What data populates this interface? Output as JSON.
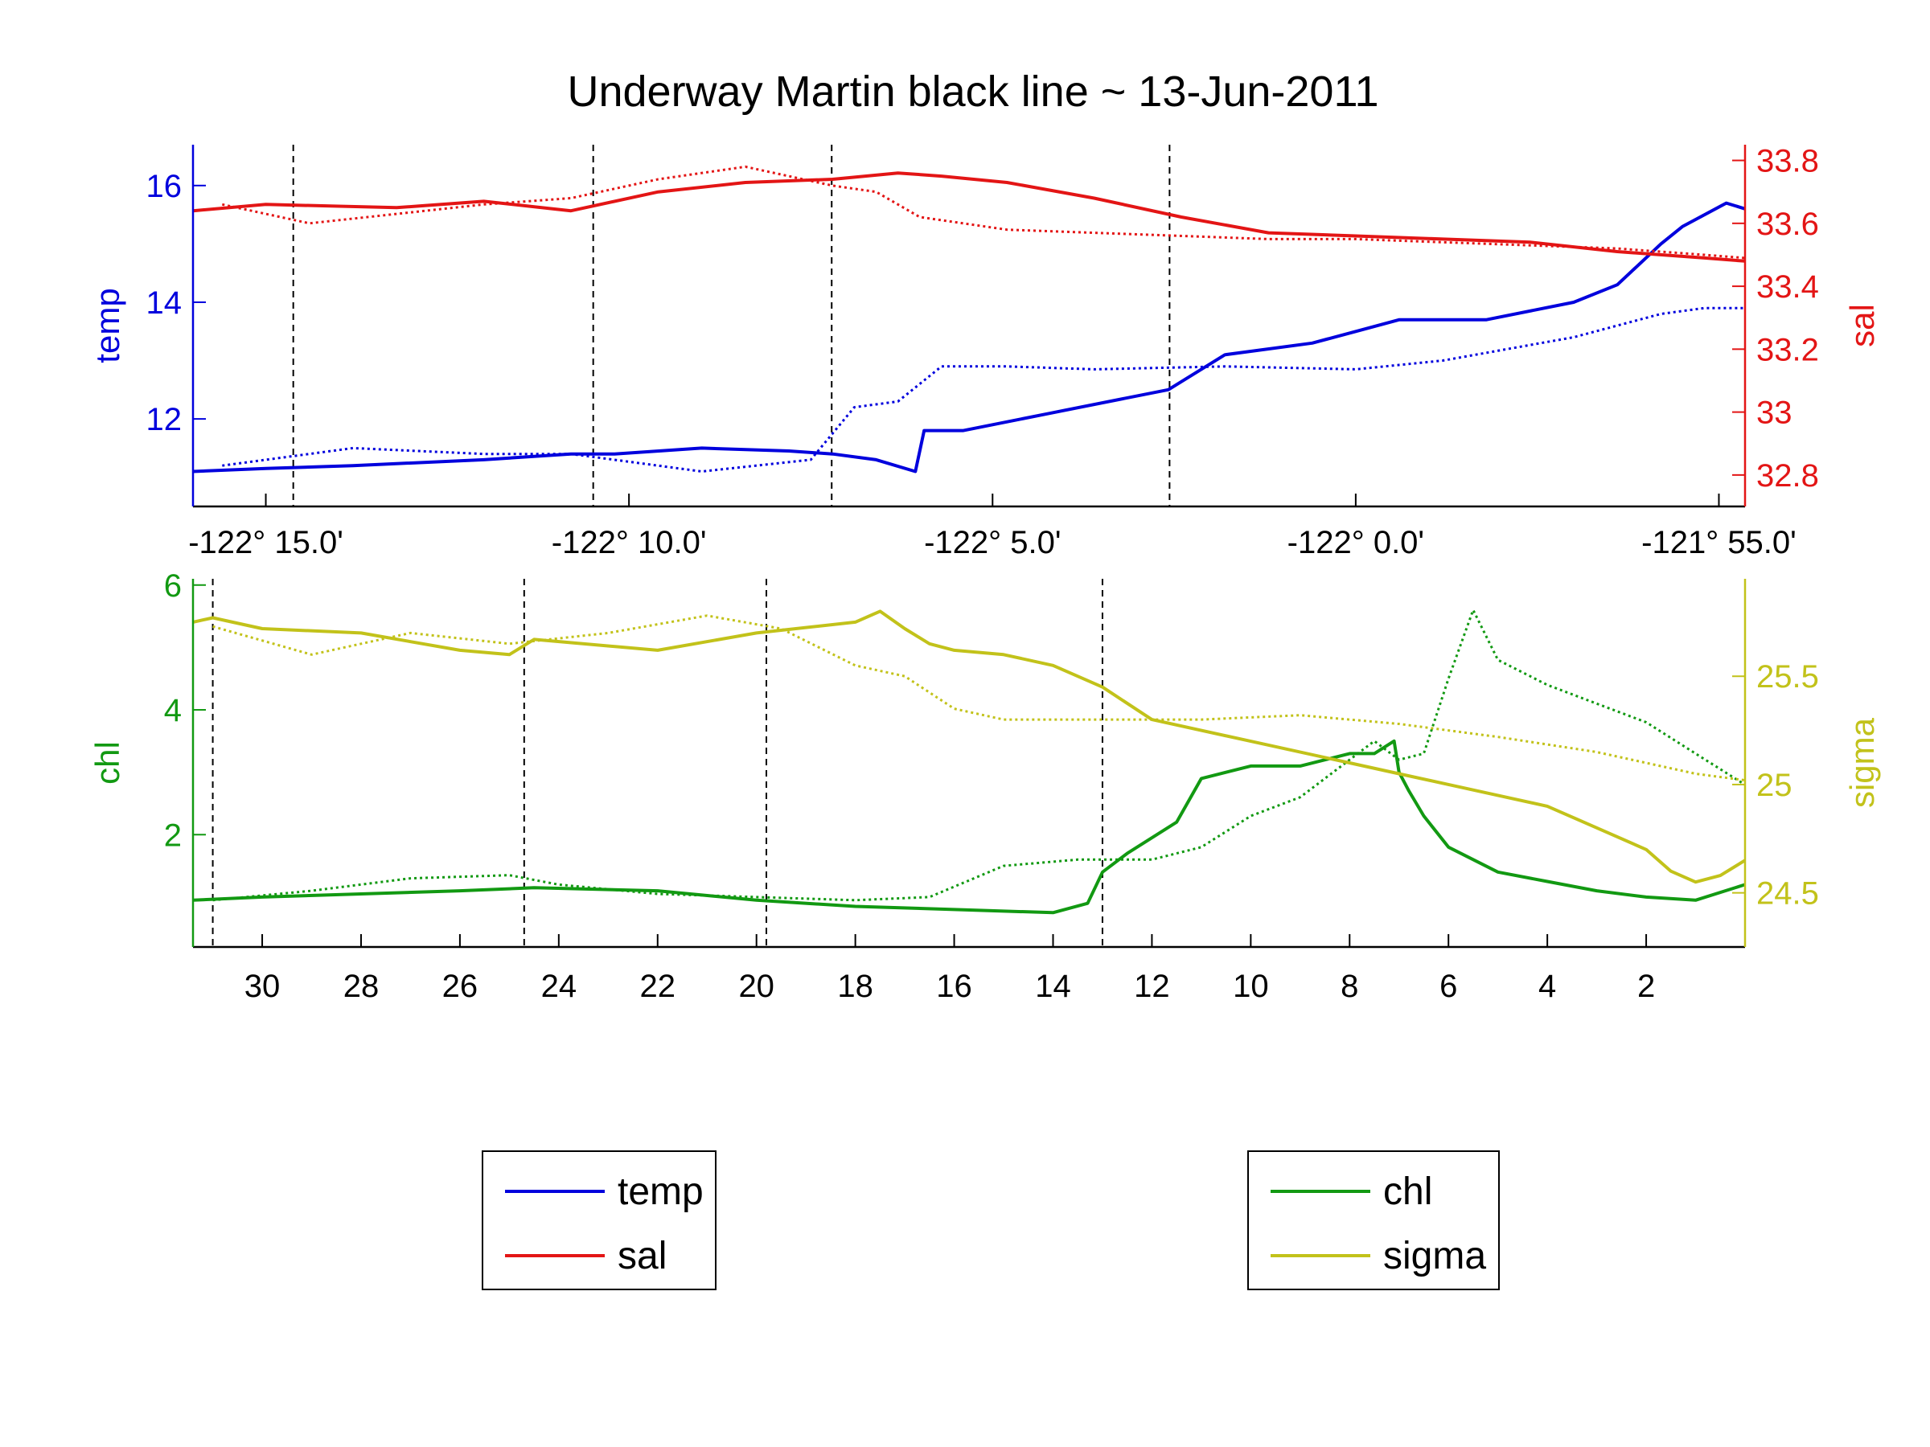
{
  "title": "Underway Martin black line ~ 13-Jun-2011",
  "colors": {
    "temp": "#0000dd",
    "sal": "#e31515",
    "chl": "#129912",
    "sigma": "#c2c21a",
    "axis": "#000000"
  },
  "legend_top": {
    "items": [
      {
        "label": "temp",
        "color": "#0000dd"
      },
      {
        "label": "sal",
        "color": "#e31515"
      }
    ]
  },
  "legend_bottom": {
    "items": [
      {
        "label": "chl",
        "color": "#129912"
      },
      {
        "label": "sigma",
        "color": "#c2c21a"
      }
    ]
  },
  "chart_data": [
    {
      "type": "line",
      "panel": "top",
      "xaxis": {
        "ticks": [
          -122.25,
          -122.1667,
          -122.0833,
          -122.0,
          -121.9167
        ],
        "tick_labels": [
          "-122° 15.0'",
          "-122° 10.0'",
          "-122° 5.0'",
          "-122° 0.0'",
          "-121° 55.0'"
        ],
        "range": [
          -122.2667,
          -121.9107
        ]
      },
      "vlines": [
        -122.2437,
        -122.1749,
        -122.1202,
        -122.0427
      ],
      "left_axis": {
        "label": "temp",
        "range": [
          10.5,
          16.7
        ],
        "ticks": [
          12,
          14,
          16
        ]
      },
      "right_axis": {
        "label": "sal",
        "range": [
          32.7,
          33.85
        ],
        "ticks": [
          32.8,
          33,
          33.2,
          33.4,
          33.6,
          33.8
        ]
      },
      "series": [
        {
          "name": "temp",
          "axis": "left",
          "style": "solid",
          "x": [
            -122.2667,
            -122.25,
            -122.23,
            -122.2,
            -122.18,
            -122.17,
            -122.15,
            -122.13,
            -122.12,
            -122.11,
            -122.101,
            -122.099,
            -122.09,
            -122.07,
            -122.043,
            -122.03,
            -122.01,
            -122.0,
            -121.99,
            -121.97,
            -121.95,
            -121.94,
            -121.93,
            -121.925,
            -121.92,
            -121.915,
            -121.9107
          ],
          "y": [
            11.1,
            11.15,
            11.2,
            11.3,
            11.4,
            11.4,
            11.5,
            11.45,
            11.4,
            11.3,
            11.1,
            11.8,
            11.8,
            12.1,
            12.5,
            13.1,
            13.3,
            13.5,
            13.7,
            13.7,
            14.0,
            14.3,
            15.0,
            15.3,
            15.5,
            15.7,
            15.6
          ]
        },
        {
          "name": "temp",
          "axis": "left",
          "style": "dotted",
          "x": [
            -122.26,
            -122.23,
            -122.2,
            -122.18,
            -122.15,
            -122.125,
            -122.115,
            -122.105,
            -122.095,
            -122.08,
            -122.06,
            -122.03,
            -122.0,
            -121.98,
            -121.95,
            -121.93,
            -121.92,
            -121.9107
          ],
          "y": [
            11.2,
            11.5,
            11.4,
            11.4,
            11.1,
            11.3,
            12.2,
            12.3,
            12.9,
            12.9,
            12.85,
            12.9,
            12.85,
            13.0,
            13.4,
            13.8,
            13.9,
            13.9
          ]
        },
        {
          "name": "sal",
          "axis": "right",
          "style": "solid",
          "x": [
            -122.2667,
            -122.25,
            -122.22,
            -122.2,
            -122.18,
            -122.16,
            -122.14,
            -122.12,
            -122.105,
            -122.095,
            -122.08,
            -122.06,
            -122.04,
            -122.02,
            -122.0,
            -121.98,
            -121.96,
            -121.94,
            -121.92,
            -121.9107
          ],
          "y": [
            33.64,
            33.66,
            33.65,
            33.67,
            33.64,
            33.7,
            33.73,
            33.74,
            33.76,
            33.75,
            33.73,
            33.68,
            33.62,
            33.57,
            33.56,
            33.55,
            33.54,
            33.51,
            33.49,
            33.48
          ]
        },
        {
          "name": "sal",
          "axis": "right",
          "style": "dotted",
          "x": [
            -122.26,
            -122.24,
            -122.22,
            -122.2,
            -122.18,
            -122.16,
            -122.14,
            -122.12,
            -122.11,
            -122.1,
            -122.08,
            -122.06,
            -122.04,
            -122.02,
            -122.0,
            -121.98,
            -121.96,
            -121.94,
            -121.92,
            -121.9107
          ],
          "y": [
            33.66,
            33.6,
            33.63,
            33.66,
            33.68,
            33.74,
            33.78,
            33.72,
            33.7,
            33.62,
            33.58,
            33.57,
            33.56,
            33.55,
            33.55,
            33.54,
            33.53,
            33.52,
            33.5,
            33.49
          ]
        }
      ]
    },
    {
      "type": "line",
      "panel": "bottom",
      "xaxis": {
        "ticks": [
          30,
          28,
          26,
          24,
          22,
          20,
          18,
          16,
          14,
          12,
          10,
          8,
          6,
          4,
          2
        ],
        "tick_labels": [
          "30",
          "28",
          "26",
          "24",
          "22",
          "20",
          "18",
          "16",
          "14",
          "12",
          "10",
          "8",
          "6",
          "4",
          "2"
        ],
        "range": [
          31.4,
          0.0
        ]
      },
      "vlines": [
        31.0,
        24.7,
        19.8,
        13.0
      ],
      "left_axis": {
        "label": "chl",
        "range": [
          0.2,
          6.1
        ],
        "ticks": [
          2,
          4,
          6
        ]
      },
      "right_axis": {
        "label": "sigma",
        "range": [
          24.25,
          25.95
        ],
        "ticks": [
          24.5,
          25,
          25.5
        ]
      },
      "series": [
        {
          "name": "chl",
          "axis": "left",
          "style": "solid",
          "x": [
            31.4,
            30.0,
            28.0,
            26.0,
            24.5,
            22.0,
            20.0,
            18.0,
            16.0,
            14.0,
            13.3,
            13.0,
            12.5,
            11.5,
            11.0,
            10.0,
            9.0,
            8.0,
            7.5,
            7.1,
            7.0,
            6.8,
            6.5,
            6.0,
            5.0,
            4.0,
            3.0,
            2.0,
            1.0,
            0.0
          ],
          "y": [
            0.95,
            1.0,
            1.05,
            1.1,
            1.15,
            1.1,
            0.95,
            0.85,
            0.8,
            0.75,
            0.9,
            1.4,
            1.7,
            2.2,
            2.9,
            3.1,
            3.1,
            3.3,
            3.3,
            3.5,
            3.0,
            2.7,
            2.3,
            1.8,
            1.4,
            1.25,
            1.1,
            1.0,
            0.95,
            1.2
          ]
        },
        {
          "name": "chl",
          "axis": "left",
          "style": "dotted",
          "x": [
            31.0,
            29.0,
            27.0,
            25.0,
            24.0,
            22.0,
            20.0,
            18.0,
            16.5,
            15.0,
            13.5,
            12.0,
            11.0,
            10.0,
            9.0,
            8.0,
            7.5,
            7.0,
            6.5,
            6.0,
            5.5,
            5.0,
            4.0,
            3.0,
            2.0,
            1.0,
            0.0
          ],
          "y": [
            0.95,
            1.1,
            1.3,
            1.35,
            1.2,
            1.05,
            1.0,
            0.95,
            1.0,
            1.5,
            1.6,
            1.6,
            1.8,
            2.3,
            2.6,
            3.2,
            3.5,
            3.2,
            3.3,
            4.5,
            5.6,
            4.8,
            4.4,
            4.1,
            3.8,
            3.3,
            2.8
          ]
        },
        {
          "name": "sigma",
          "axis": "right",
          "style": "solid",
          "x": [
            31.4,
            31.0,
            30.0,
            28.0,
            26.0,
            25.0,
            24.5,
            22.0,
            20.0,
            18.0,
            17.5,
            17.0,
            16.5,
            16.0,
            15.0,
            14.0,
            13.0,
            12.0,
            10.0,
            8.0,
            7.0,
            6.0,
            5.0,
            4.0,
            3.0,
            2.0,
            1.5,
            1.0,
            0.5,
            0.0
          ],
          "y": [
            25.75,
            25.77,
            25.72,
            25.7,
            25.62,
            25.6,
            25.67,
            25.62,
            25.7,
            25.75,
            25.8,
            25.72,
            25.65,
            25.62,
            25.6,
            25.55,
            25.45,
            25.3,
            25.2,
            25.1,
            25.05,
            25.0,
            24.95,
            24.9,
            24.8,
            24.7,
            24.6,
            24.55,
            24.58,
            24.65
          ]
        },
        {
          "name": "sigma",
          "axis": "right",
          "style": "dotted",
          "x": [
            31.0,
            29.0,
            27.0,
            25.0,
            23.0,
            21.0,
            19.5,
            18.0,
            17.0,
            16.0,
            15.0,
            13.0,
            11.0,
            9.0,
            7.0,
            5.0,
            3.0,
            1.0,
            0.0
          ],
          "y": [
            25.73,
            25.6,
            25.7,
            25.65,
            25.7,
            25.78,
            25.72,
            25.55,
            25.5,
            25.35,
            25.3,
            25.3,
            25.3,
            25.32,
            25.28,
            25.22,
            25.15,
            25.05,
            25.02
          ]
        }
      ]
    }
  ]
}
